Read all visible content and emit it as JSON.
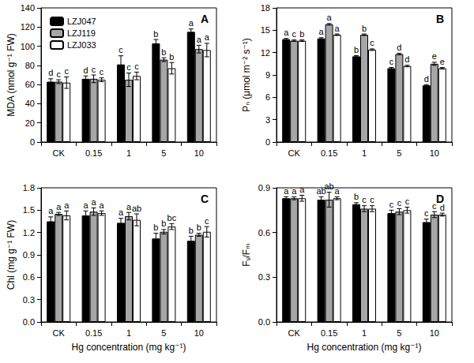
{
  "chart_data": [
    {
      "type": "bar",
      "title": "A",
      "ylabel": "MDA (nmol g⁻¹ FW)",
      "categories": [
        "CK",
        "0.15",
        "1",
        "5",
        "10"
      ],
      "ylim": [
        0,
        140
      ],
      "yticks": [
        0,
        20,
        40,
        60,
        80,
        100,
        120,
        140
      ],
      "grid": false,
      "legend": "upper left",
      "series": [
        {
          "name": "LZJ047",
          "color": "#000000",
          "values": [
            63,
            66,
            81,
            103,
            115
          ],
          "errors": [
            3,
            3,
            9,
            4,
            3
          ],
          "letters": [
            "d",
            "d",
            "c",
            "b",
            "a"
          ]
        },
        {
          "name": "LZJ119",
          "color": "#a6a6a6",
          "values": [
            63,
            66,
            65,
            86,
            97
          ],
          "errors": [
            2,
            4,
            7,
            2,
            4
          ],
          "letters": [
            "c",
            "c",
            "c",
            "b",
            "a"
          ]
        },
        {
          "name": "LZJ033",
          "color": "#ffffff",
          "values": [
            62,
            65,
            69,
            77,
            96
          ],
          "errors": [
            6,
            2,
            4,
            6,
            7
          ],
          "letters": [
            "c",
            "c",
            "c",
            "b",
            "a"
          ]
        }
      ]
    },
    {
      "type": "bar",
      "title": "B",
      "ylabel": "Pₙ (μmol m⁻² s⁻¹)",
      "categories": [
        "CK",
        "0.15",
        "1",
        "5",
        "10"
      ],
      "ylim": [
        0,
        18
      ],
      "yticks": [
        0,
        3,
        6,
        9,
        12,
        15,
        18
      ],
      "grid": false,
      "series": [
        {
          "name": "LZJ047",
          "color": "#000000",
          "values": [
            13.8,
            13.9,
            11.5,
            9.9,
            7.6
          ],
          "errors": [
            0.1,
            0.1,
            0.1,
            0.1,
            0.1
          ],
          "letters": [
            "a",
            "a",
            "b",
            "c",
            "d"
          ]
        },
        {
          "name": "LZJ119",
          "color": "#a6a6a6",
          "values": [
            13.6,
            15.8,
            14.4,
            11.8,
            10.5
          ],
          "errors": [
            0.1,
            0.1,
            0.1,
            0.1,
            0.2
          ],
          "letters": [
            "c",
            "a",
            "b",
            "d",
            "e"
          ]
        },
        {
          "name": "LZJ033",
          "color": "#ffffff",
          "values": [
            13.6,
            14.4,
            12.4,
            10.2,
            9.9
          ],
          "errors": [
            0.1,
            0.1,
            0.1,
            0.1,
            0.1
          ],
          "letters": [
            "b",
            "a",
            "c",
            "d",
            "e"
          ]
        }
      ]
    },
    {
      "type": "bar",
      "title": "C",
      "ylabel": "Chl (mg g⁻¹ FW)",
      "xlabel": "Hg concentration (mg kg⁻¹)",
      "categories": [
        "CK",
        "0.15",
        "1",
        "5",
        "10"
      ],
      "ylim": [
        0,
        1.8
      ],
      "yticks": [
        {
          "value": 0,
          "label": "0.0"
        },
        0.3,
        0.6,
        0.9,
        1.2,
        1.5,
        1.8
      ],
      "grid": false,
      "series": [
        {
          "name": "LZJ047",
          "color": "#000000",
          "values": [
            1.35,
            1.43,
            1.33,
            1.12,
            1.09
          ],
          "errors": [
            0.06,
            0.06,
            0.06,
            0.07,
            0.06
          ],
          "letters": [
            "a",
            "a",
            "a",
            "b",
            "b"
          ]
        },
        {
          "name": "LZJ119",
          "color": "#a6a6a6",
          "values": [
            1.45,
            1.48,
            1.42,
            1.21,
            1.17
          ],
          "errors": [
            0.02,
            0.05,
            0.05,
            0.03,
            0.02
          ],
          "letters": [
            "a",
            "a",
            "a",
            "b",
            "b"
          ]
        },
        {
          "name": "LZJ033",
          "color": "#ffffff",
          "values": [
            1.43,
            1.46,
            1.37,
            1.28,
            1.21
          ],
          "errors": [
            0.06,
            0.03,
            0.08,
            0.04,
            0.07
          ],
          "letters": [
            "a",
            "a",
            "ab",
            "bc",
            "c"
          ]
        }
      ]
    },
    {
      "type": "bar",
      "title": "D",
      "ylabel": "Fᵥ/Fₘ",
      "xlabel": "Hg concentration (mg kg⁻¹)",
      "categories": [
        "CK",
        "0.15",
        "1",
        "5",
        "10"
      ],
      "ylim": [
        0,
        0.9
      ],
      "yticks": [
        {
          "value": 0,
          "label": "0.0"
        },
        0.3,
        0.6,
        0.9
      ],
      "grid": false,
      "series": [
        {
          "name": "LZJ047",
          "color": "#000000",
          "values": [
            0.83,
            0.82,
            0.79,
            0.73,
            0.67
          ],
          "errors": [
            0.01,
            0.02,
            0.01,
            0.02,
            0.02
          ],
          "letters": [
            "a",
            "ab",
            "b",
            "c",
            "c"
          ]
        },
        {
          "name": "LZJ119",
          "color": "#a6a6a6",
          "values": [
            0.83,
            0.82,
            0.76,
            0.74,
            0.72
          ],
          "errors": [
            0.01,
            0.05,
            0.02,
            0.02,
            0.02
          ],
          "letters": [
            "a",
            "ab",
            "c",
            "c",
            "c"
          ]
        },
        {
          "name": "LZJ033",
          "color": "#ffffff",
          "values": [
            0.83,
            0.83,
            0.76,
            0.75,
            0.72
          ],
          "errors": [
            0.02,
            0.01,
            0.02,
            0.02,
            0.01
          ],
          "letters": [
            "a",
            "a",
            "c",
            "c",
            "d"
          ]
        }
      ]
    }
  ]
}
